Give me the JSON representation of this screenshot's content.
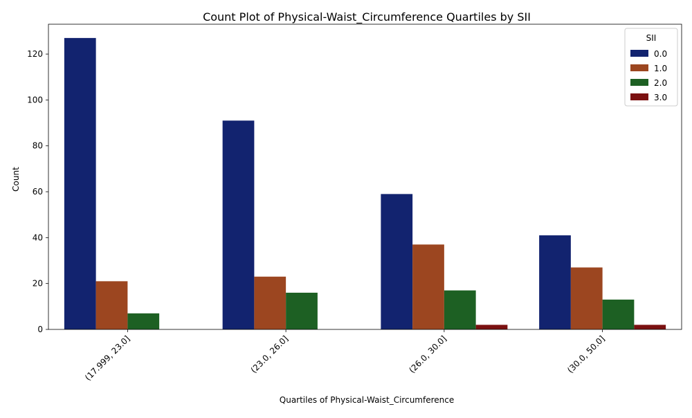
{
  "chart_data": {
    "type": "bar",
    "title": "Count Plot of Physical-Waist_Circumference Quartiles by SII",
    "xlabel": "Quartiles of Physical-Waist_Circumference",
    "ylabel": "Count",
    "categories": [
      "(17.999, 23.0]",
      "(23.0, 26.0]",
      "(26.0, 30.0]",
      "(30.0, 50.0]"
    ],
    "ylim": [
      0,
      133
    ],
    "yticks": [
      0,
      20,
      40,
      60,
      80,
      100,
      120
    ],
    "legend": {
      "title": "SII",
      "position": "top-right"
    },
    "grid": false,
    "series": [
      {
        "name": "0.0",
        "color": "#12236f",
        "values": [
          127,
          91,
          59,
          41
        ]
      },
      {
        "name": "1.0",
        "color": "#9c4620",
        "values": [
          21,
          23,
          37,
          27
        ]
      },
      {
        "name": "2.0",
        "color": "#1d6023",
        "values": [
          7,
          16,
          17,
          13
        ]
      },
      {
        "name": "3.0",
        "color": "#7b1111",
        "values": [
          0,
          0,
          2,
          2
        ]
      }
    ]
  }
}
